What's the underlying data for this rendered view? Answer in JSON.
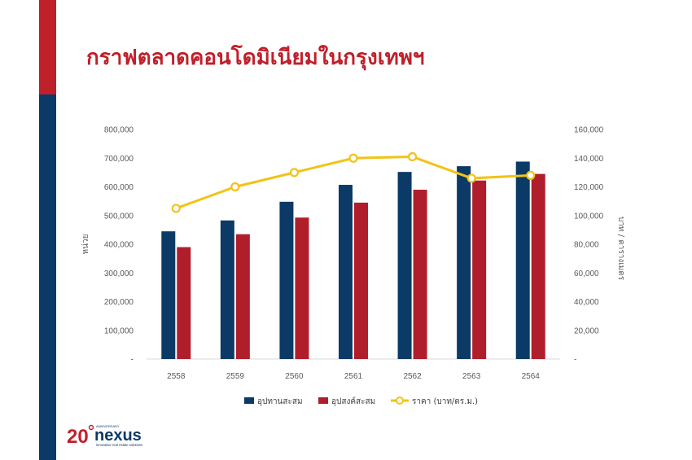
{
  "page": {
    "title": "กราฟตลาดคอนโดมิเนียมในกรุงเทพฯ"
  },
  "colors": {
    "accent_red": "#c0202a",
    "accent_blue": "#0b3a66",
    "supply_bar": "#0b3a66",
    "demand_bar": "#b01e2b",
    "price_line": "#f2c317"
  },
  "logo": {
    "number": "20",
    "brand": "nexus",
    "top_text": "ANNIVERSARY",
    "tagline": "innovative real estate solutions"
  },
  "chart_data": {
    "type": "bar",
    "categories": [
      "2558",
      "2559",
      "2560",
      "2561",
      "2562",
      "2563",
      "2564"
    ],
    "series": [
      {
        "name": "อุปทานสะสม",
        "kind": "bar",
        "axis": "left",
        "values": [
          445000,
          483000,
          548000,
          607000,
          652000,
          672000,
          688000
        ]
      },
      {
        "name": "อุปสงค์สะสม",
        "kind": "bar",
        "axis": "left",
        "values": [
          390000,
          435000,
          493000,
          545000,
          590000,
          622000,
          645000
        ]
      },
      {
        "name": "ราคา (บาท/ตร.ม.)",
        "kind": "line",
        "axis": "right",
        "values": [
          105000,
          120000,
          130000,
          140000,
          141000,
          126000,
          128000
        ]
      }
    ],
    "ylabel": "หน่วย",
    "y2label": "บาท / ตารางเมตร",
    "ylim": [
      0,
      800000
    ],
    "y2lim": [
      0,
      160000
    ],
    "yticks": [
      "-",
      "100,000",
      "200,000",
      "300,000",
      "400,000",
      "500,000",
      "600,000",
      "700,000",
      "800,000"
    ],
    "y2ticks": [
      "-",
      "20,000",
      "40,000",
      "60,000",
      "80,000",
      "100,000",
      "120,000",
      "140,000",
      "160,000"
    ],
    "grid": false,
    "legend_position": "bottom"
  }
}
